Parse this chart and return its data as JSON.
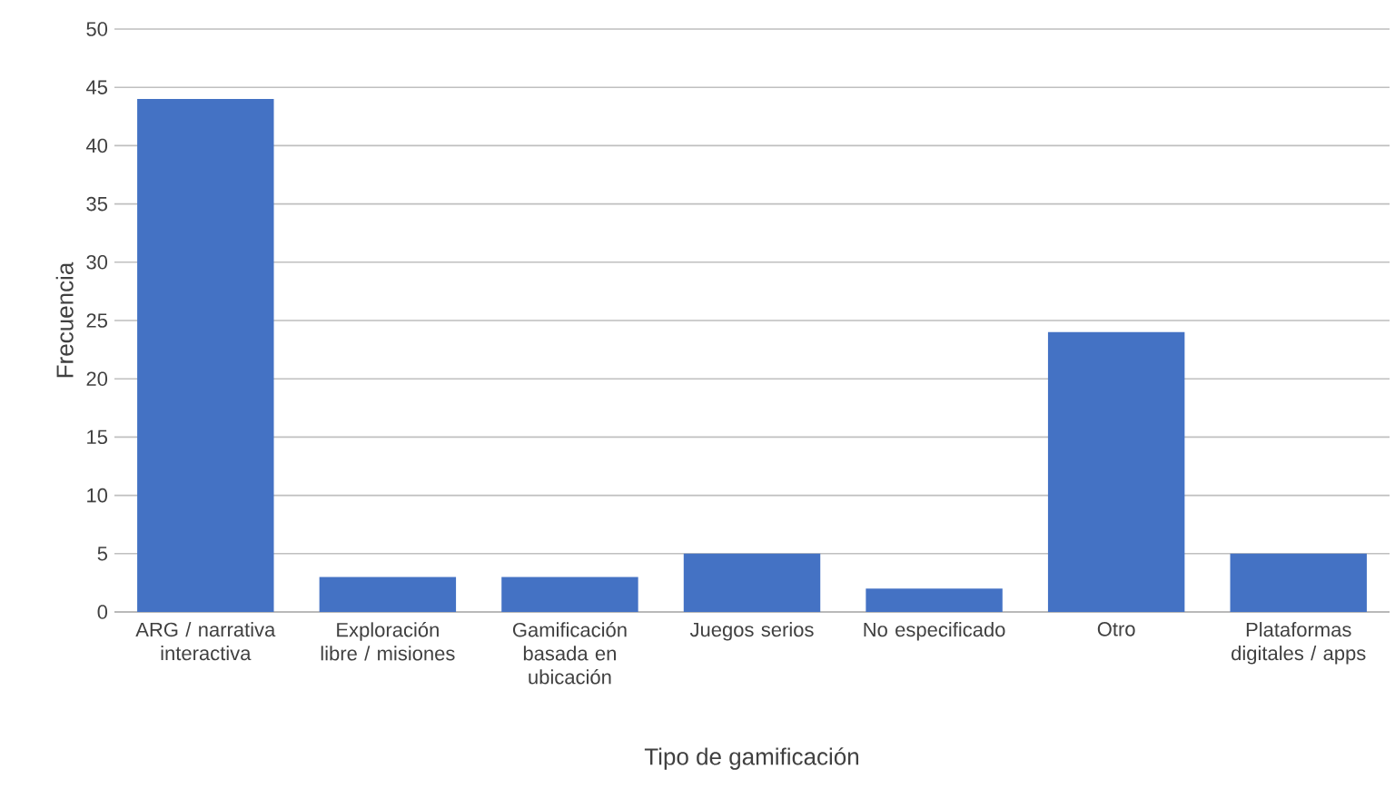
{
  "chart_data": {
    "type": "bar",
    "xlabel": "Tipo de gamificación",
    "ylabel": "Frecuencia",
    "categories": [
      "ARG / narrativa interactiva",
      "Exploración libre / misiones",
      "Gamificación basada en ubicación",
      "Juegos serios",
      "No especificado",
      "Otro",
      "Plataformas digitales / apps"
    ],
    "values": [
      44,
      3,
      3,
      5,
      2,
      24,
      5
    ],
    "color": "#4472c4",
    "ylim": [
      0,
      50
    ],
    "yticks": [
      0,
      5,
      10,
      15,
      20,
      25,
      30,
      35,
      40,
      45,
      50
    ],
    "grid": "y"
  }
}
